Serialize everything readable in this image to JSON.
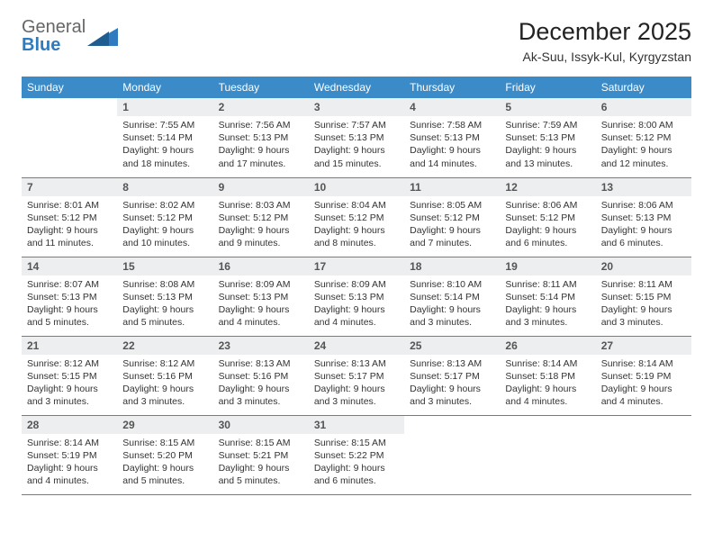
{
  "logo": {
    "text_general": "General",
    "text_blue": "Blue"
  },
  "header": {
    "title": "December 2025",
    "location": "Ak-Suu, Issyk-Kul, Kyrgyzstan"
  },
  "colors": {
    "header_bg": "#3b8bc9",
    "header_text": "#ffffff",
    "daynum_bg": "#eceeef",
    "border": "#3b8bc9",
    "logo_blue": "#2f7bbf"
  },
  "weekdays": [
    "Sunday",
    "Monday",
    "Tuesday",
    "Wednesday",
    "Thursday",
    "Friday",
    "Saturday"
  ],
  "start_offset": 1,
  "days": [
    {
      "n": 1,
      "sunrise": "7:55 AM",
      "sunset": "5:14 PM",
      "daylight": "9 hours and 18 minutes."
    },
    {
      "n": 2,
      "sunrise": "7:56 AM",
      "sunset": "5:13 PM",
      "daylight": "9 hours and 17 minutes."
    },
    {
      "n": 3,
      "sunrise": "7:57 AM",
      "sunset": "5:13 PM",
      "daylight": "9 hours and 15 minutes."
    },
    {
      "n": 4,
      "sunrise": "7:58 AM",
      "sunset": "5:13 PM",
      "daylight": "9 hours and 14 minutes."
    },
    {
      "n": 5,
      "sunrise": "7:59 AM",
      "sunset": "5:13 PM",
      "daylight": "9 hours and 13 minutes."
    },
    {
      "n": 6,
      "sunrise": "8:00 AM",
      "sunset": "5:12 PM",
      "daylight": "9 hours and 12 minutes."
    },
    {
      "n": 7,
      "sunrise": "8:01 AM",
      "sunset": "5:12 PM",
      "daylight": "9 hours and 11 minutes."
    },
    {
      "n": 8,
      "sunrise": "8:02 AM",
      "sunset": "5:12 PM",
      "daylight": "9 hours and 10 minutes."
    },
    {
      "n": 9,
      "sunrise": "8:03 AM",
      "sunset": "5:12 PM",
      "daylight": "9 hours and 9 minutes."
    },
    {
      "n": 10,
      "sunrise": "8:04 AM",
      "sunset": "5:12 PM",
      "daylight": "9 hours and 8 minutes."
    },
    {
      "n": 11,
      "sunrise": "8:05 AM",
      "sunset": "5:12 PM",
      "daylight": "9 hours and 7 minutes."
    },
    {
      "n": 12,
      "sunrise": "8:06 AM",
      "sunset": "5:12 PM",
      "daylight": "9 hours and 6 minutes."
    },
    {
      "n": 13,
      "sunrise": "8:06 AM",
      "sunset": "5:13 PM",
      "daylight": "9 hours and 6 minutes."
    },
    {
      "n": 14,
      "sunrise": "8:07 AM",
      "sunset": "5:13 PM",
      "daylight": "9 hours and 5 minutes."
    },
    {
      "n": 15,
      "sunrise": "8:08 AM",
      "sunset": "5:13 PM",
      "daylight": "9 hours and 5 minutes."
    },
    {
      "n": 16,
      "sunrise": "8:09 AM",
      "sunset": "5:13 PM",
      "daylight": "9 hours and 4 minutes."
    },
    {
      "n": 17,
      "sunrise": "8:09 AM",
      "sunset": "5:13 PM",
      "daylight": "9 hours and 4 minutes."
    },
    {
      "n": 18,
      "sunrise": "8:10 AM",
      "sunset": "5:14 PM",
      "daylight": "9 hours and 3 minutes."
    },
    {
      "n": 19,
      "sunrise": "8:11 AM",
      "sunset": "5:14 PM",
      "daylight": "9 hours and 3 minutes."
    },
    {
      "n": 20,
      "sunrise": "8:11 AM",
      "sunset": "5:15 PM",
      "daylight": "9 hours and 3 minutes."
    },
    {
      "n": 21,
      "sunrise": "8:12 AM",
      "sunset": "5:15 PM",
      "daylight": "9 hours and 3 minutes."
    },
    {
      "n": 22,
      "sunrise": "8:12 AM",
      "sunset": "5:16 PM",
      "daylight": "9 hours and 3 minutes."
    },
    {
      "n": 23,
      "sunrise": "8:13 AM",
      "sunset": "5:16 PM",
      "daylight": "9 hours and 3 minutes."
    },
    {
      "n": 24,
      "sunrise": "8:13 AM",
      "sunset": "5:17 PM",
      "daylight": "9 hours and 3 minutes."
    },
    {
      "n": 25,
      "sunrise": "8:13 AM",
      "sunset": "5:17 PM",
      "daylight": "9 hours and 3 minutes."
    },
    {
      "n": 26,
      "sunrise": "8:14 AM",
      "sunset": "5:18 PM",
      "daylight": "9 hours and 4 minutes."
    },
    {
      "n": 27,
      "sunrise": "8:14 AM",
      "sunset": "5:19 PM",
      "daylight": "9 hours and 4 minutes."
    },
    {
      "n": 28,
      "sunrise": "8:14 AM",
      "sunset": "5:19 PM",
      "daylight": "9 hours and 4 minutes."
    },
    {
      "n": 29,
      "sunrise": "8:15 AM",
      "sunset": "5:20 PM",
      "daylight": "9 hours and 5 minutes."
    },
    {
      "n": 30,
      "sunrise": "8:15 AM",
      "sunset": "5:21 PM",
      "daylight": "9 hours and 5 minutes."
    },
    {
      "n": 31,
      "sunrise": "8:15 AM",
      "sunset": "5:22 PM",
      "daylight": "9 hours and 6 minutes."
    }
  ],
  "labels": {
    "sunrise": "Sunrise:",
    "sunset": "Sunset:",
    "daylight": "Daylight:"
  }
}
